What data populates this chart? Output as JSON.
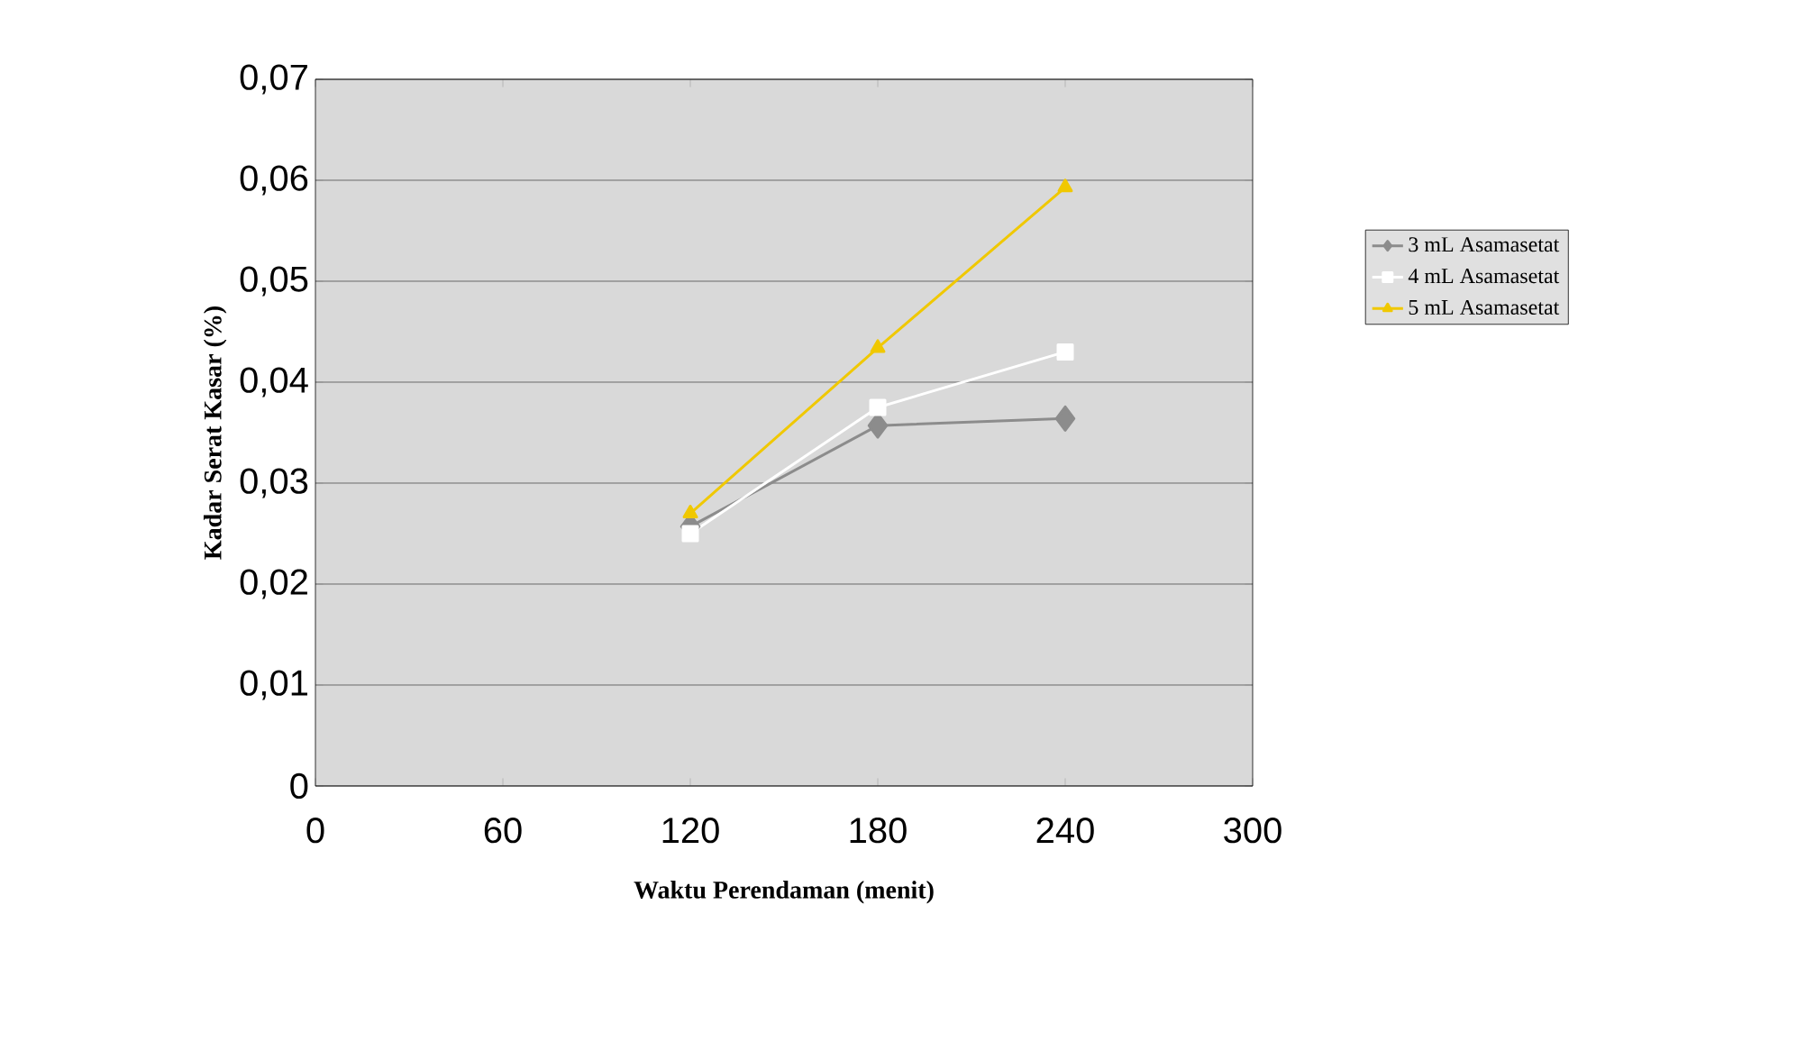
{
  "chart_data": {
    "type": "line",
    "xlabel": "Waktu Perendaman (menit)",
    "ylabel": "Kadar Serat Kasar (%)",
    "x": [
      120,
      180,
      240
    ],
    "series": [
      {
        "name": "3 mL Asamasetat",
        "color": "#8c8c8c",
        "marker": "diamond",
        "values": [
          0.0257,
          0.0357,
          0.0364
        ]
      },
      {
        "name": "4 mL Asamasetat",
        "color": "#ffffff",
        "marker": "square",
        "values": [
          0.025,
          0.0375,
          0.043
        ]
      },
      {
        "name": "5 mL Asamasetat",
        "color": "#f0c800",
        "marker": "triangle",
        "values": [
          0.027,
          0.0434,
          0.0593
        ]
      }
    ],
    "xlim": [
      0,
      300
    ],
    "xticks": [
      0,
      60,
      120,
      180,
      240,
      300
    ],
    "ylim": [
      0,
      0.07
    ],
    "yticks": [
      0,
      {
        "value": 0.01,
        "label": "0,01"
      },
      {
        "value": 0.02,
        "label": "0,02"
      },
      {
        "value": 0.03,
        "label": "0,03"
      },
      {
        "value": 0.04,
        "label": "0,04"
      },
      {
        "value": 0.05,
        "label": "0,05"
      },
      {
        "value": 0.06,
        "label": "0,06"
      },
      {
        "value": 0.07,
        "label": "0,07"
      }
    ],
    "grid": "y",
    "legend": "right",
    "line_style": "solid"
  }
}
